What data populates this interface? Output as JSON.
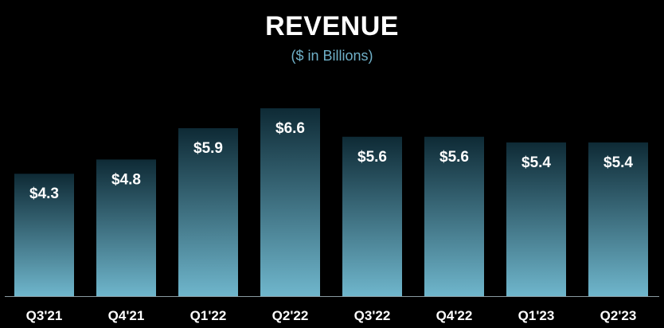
{
  "chart_data": {
    "type": "bar",
    "title": "REVENUE",
    "subtitle": "($ in Billions)",
    "categories": [
      "Q3'21",
      "Q4'21",
      "Q1'22",
      "Q2'22",
      "Q3'22",
      "Q4'22",
      "Q1'23",
      "Q2'23"
    ],
    "values": [
      4.3,
      4.8,
      5.9,
      6.6,
      5.6,
      5.6,
      5.4,
      5.4
    ],
    "data_labels": [
      "$4.3",
      "$4.8",
      "$5.9",
      "$6.6",
      "$5.6",
      "$5.6",
      "$5.4",
      "$5.4"
    ],
    "xlabel": "",
    "ylabel": "",
    "grid": false,
    "legend": "none",
    "colors": {
      "background": "#000000",
      "bar_top": "#0e2a35",
      "bar_bottom": "#6fb6cc",
      "title": "#ffffff",
      "subtitle": "#6fb0c8",
      "label": "#ffffff",
      "axis": "#8a9aa0"
    }
  }
}
